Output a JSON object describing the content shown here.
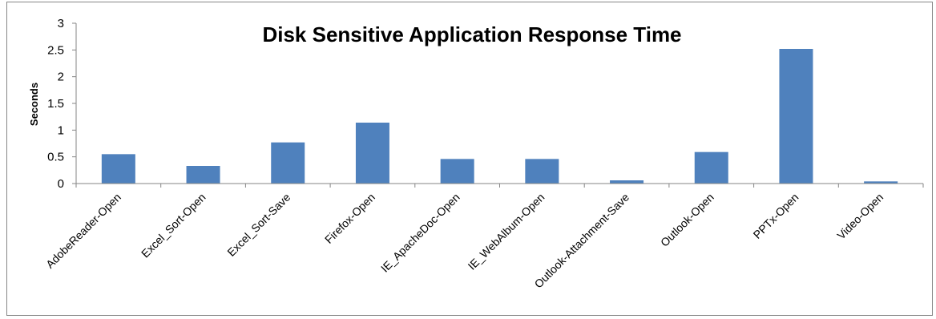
{
  "chart_data": {
    "type": "bar",
    "title": "Disk Sensitive Application Response Time",
    "xlabel": "",
    "ylabel": "Seconds",
    "ylim": [
      0,
      3
    ],
    "yticks": [
      "0",
      "0.5",
      "1",
      "1.5",
      "2",
      "2.5",
      "3"
    ],
    "grid": false,
    "legend": "none",
    "bar_color": "#4F81BD",
    "categories": [
      "AdobeReader-Open",
      "Excel_Sort-Open",
      "Excel_Sort-Save",
      "Firefox-Open",
      "IE_ApacheDoc-Open",
      "IE_WebAlbum-Open",
      "Outlook-Attachment-Save",
      "Outlook-Open",
      "PPTx-Open",
      "Video-Open"
    ],
    "values": [
      0.55,
      0.33,
      0.77,
      1.14,
      0.46,
      0.46,
      0.06,
      0.59,
      2.52,
      0.04
    ]
  }
}
